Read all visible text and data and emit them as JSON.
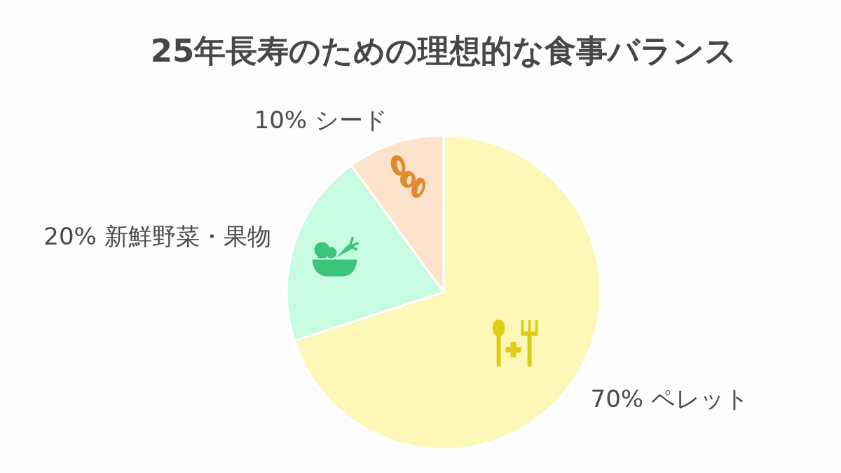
{
  "chart_data": {
    "type": "pie",
    "title": "25年長寿のための理想的な食事バランス",
    "categories": [
      "ペレット",
      "新鮮野菜・果物",
      "シード"
    ],
    "values": [
      70,
      20,
      10
    ],
    "colors": [
      "#fdf8b8",
      "#c9fbe1",
      "#fde2cc"
    ],
    "value_labels": [
      "70%",
      "20%",
      "10%"
    ]
  }
}
